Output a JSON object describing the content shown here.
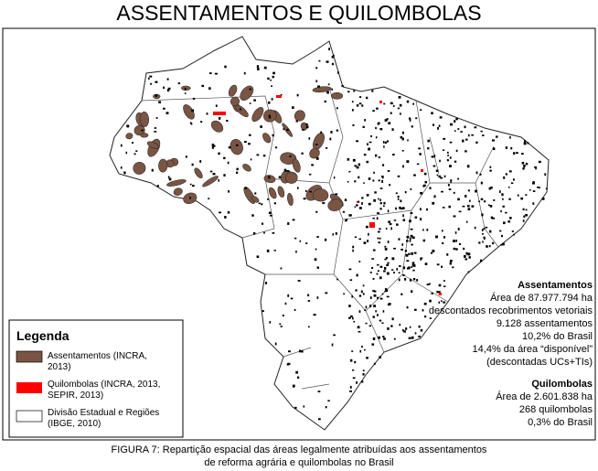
{
  "title": "ASSENTAMENTOS E QUILOMBOLAS",
  "legend": {
    "title": "Legenda",
    "items": [
      {
        "lines": [
          "Assentamentos (INCRA,",
          "2013)"
        ]
      },
      {
        "lines": [
          "Quilombolas (INCRA, 2013,",
          "SEPIR, 2013)"
        ]
      },
      {
        "lines": [
          "Divisão Estadual e Regiões",
          "(IBGE, 2010)"
        ]
      }
    ]
  },
  "assentamentos": {
    "heading": "Assentamentos",
    "lines": [
      "Área de 87.977.794  ha",
      "descontados recobrimentos vetoriais",
      "9.128 assentamentos",
      "10,2% do Brasil",
      "14,4% da área “disponível”",
      "(descontadas UCs+TIs)"
    ]
  },
  "quilombolas": {
    "heading": "Quilombolas",
    "lines": [
      "Área de 2.601.838  ha",
      "268 quilombolas",
      "0,3% do Brasil"
    ]
  },
  "caption": [
    "FIGURA 7: Repartição espacial das áreas legalmente atribuídas aos assentamentos",
    "de reforma agrária e quilombolas no Brasil"
  ]
}
